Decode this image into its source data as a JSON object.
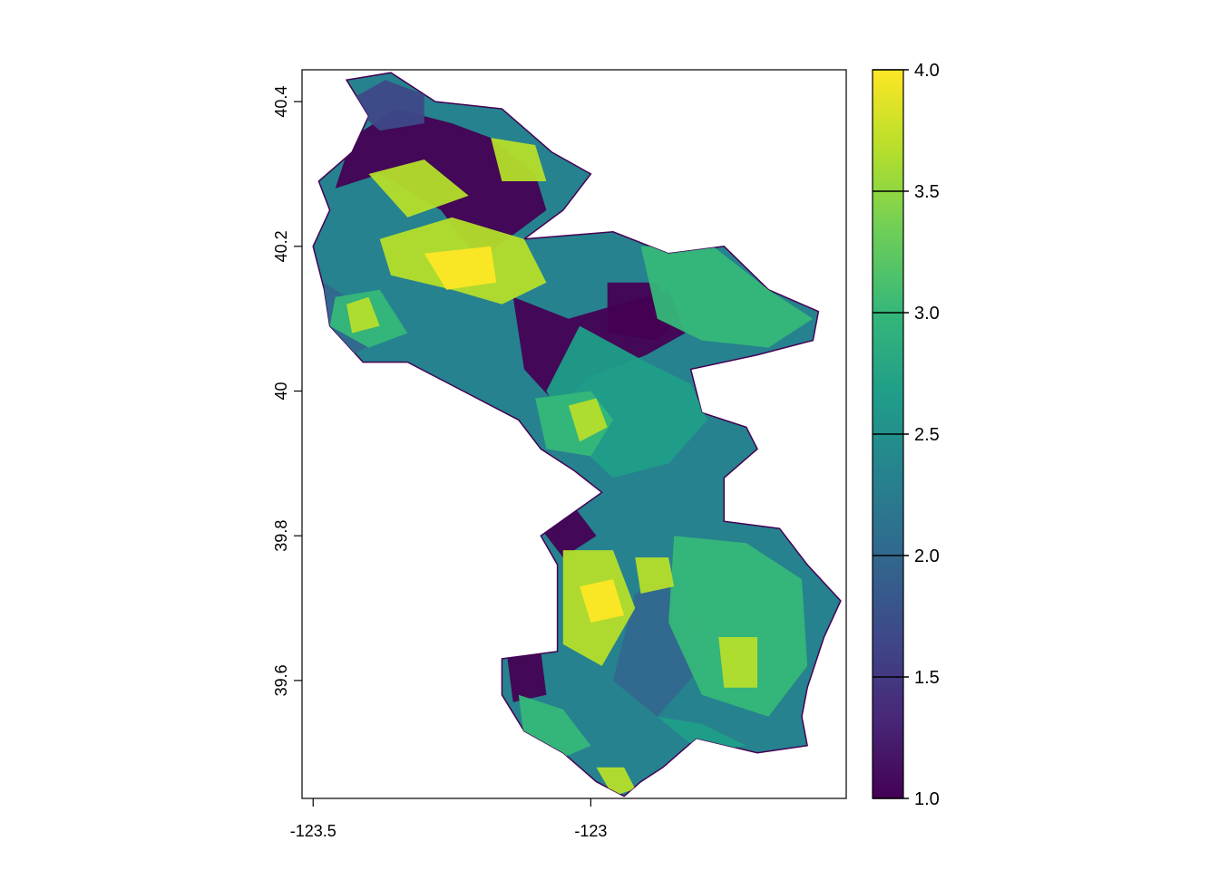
{
  "chart_data": {
    "type": "heatmap",
    "title": "",
    "xlabel": "",
    "ylabel": "",
    "xlim": [
      -123.52,
      -122.54
    ],
    "ylim": [
      39.437,
      40.444
    ],
    "x_ticks": [
      {
        "value": -123.5,
        "label": "-123.5"
      },
      {
        "value": -123.0,
        "label": "-123"
      }
    ],
    "y_ticks": [
      {
        "value": 39.6,
        "label": "39.6"
      },
      {
        "value": 39.8,
        "label": "39.8"
      },
      {
        "value": 40.0,
        "label": "40"
      },
      {
        "value": 40.2,
        "label": "40.2"
      },
      {
        "value": 40.4,
        "label": "40.4"
      }
    ],
    "legend": {
      "placement": "right",
      "min": 1.0,
      "max": 4.0,
      "ticks": [
        {
          "value": 1.0,
          "label": "1.0"
        },
        {
          "value": 1.5,
          "label": "1.5"
        },
        {
          "value": 2.0,
          "label": "2.0"
        },
        {
          "value": 2.5,
          "label": "2.5"
        },
        {
          "value": 3.0,
          "label": "3.0"
        },
        {
          "value": 3.5,
          "label": "3.5"
        },
        {
          "value": 4.0,
          "label": "4.0"
        }
      ],
      "colors": [
        "#440154",
        "#482878",
        "#3e4989",
        "#31688e",
        "#26828e",
        "#1f9e89",
        "#35b779",
        "#6ece58",
        "#b5de2b",
        "#fde725"
      ]
    },
    "region_outline": [
      [
        -123.44,
        40.43
      ],
      [
        -123.36,
        40.44
      ],
      [
        -123.28,
        40.4
      ],
      [
        -123.16,
        40.39
      ],
      [
        -123.07,
        40.33
      ],
      [
        -123.0,
        40.3
      ],
      [
        -123.05,
        40.25
      ],
      [
        -123.12,
        40.21
      ],
      [
        -122.96,
        40.22
      ],
      [
        -122.86,
        40.19
      ],
      [
        -122.76,
        40.2
      ],
      [
        -122.68,
        40.14
      ],
      [
        -122.59,
        40.11
      ],
      [
        -122.6,
        40.07
      ],
      [
        -122.7,
        40.05
      ],
      [
        -122.82,
        40.03
      ],
      [
        -122.8,
        39.97
      ],
      [
        -122.72,
        39.95
      ],
      [
        -122.7,
        39.92
      ],
      [
        -122.76,
        39.88
      ],
      [
        -122.76,
        39.82
      ],
      [
        -122.66,
        39.81
      ],
      [
        -122.61,
        39.76
      ],
      [
        -122.55,
        39.71
      ],
      [
        -122.58,
        39.66
      ],
      [
        -122.61,
        39.59
      ],
      [
        -122.62,
        39.55
      ],
      [
        -122.61,
        39.51
      ],
      [
        -122.7,
        39.5
      ],
      [
        -122.81,
        39.52
      ],
      [
        -122.87,
        39.48
      ],
      [
        -122.91,
        39.46
      ],
      [
        -122.94,
        39.44
      ],
      [
        -122.99,
        39.46
      ],
      [
        -123.05,
        39.5
      ],
      [
        -123.12,
        39.53
      ],
      [
        -123.16,
        39.58
      ],
      [
        -123.16,
        39.63
      ],
      [
        -123.06,
        39.64
      ],
      [
        -123.06,
        39.69
      ],
      [
        -123.06,
        39.76
      ],
      [
        -123.09,
        39.8
      ],
      [
        -122.98,
        39.86
      ],
      [
        -123.03,
        39.89
      ],
      [
        -123.09,
        39.92
      ],
      [
        -123.13,
        39.96
      ],
      [
        -123.23,
        40.0
      ],
      [
        -123.33,
        40.04
      ],
      [
        -123.41,
        40.04
      ],
      [
        -123.47,
        40.09
      ],
      [
        -123.48,
        40.14
      ],
      [
        -123.5,
        40.2
      ],
      [
        -123.47,
        40.25
      ],
      [
        -123.49,
        40.29
      ],
      [
        -123.43,
        40.33
      ],
      [
        -123.4,
        40.38
      ]
    ],
    "zones": [
      {
        "value": 1.0,
        "polygon": [
          [
            -123.15,
            40.21
          ],
          [
            -123.2,
            40.18
          ],
          [
            -123.27,
            40.25
          ],
          [
            -123.38,
            40.3
          ],
          [
            -123.46,
            40.28
          ],
          [
            -123.43,
            40.35
          ],
          [
            -123.35,
            40.39
          ],
          [
            -123.25,
            40.37
          ],
          [
            -123.18,
            40.35
          ],
          [
            -123.1,
            40.3
          ],
          [
            -123.08,
            40.25
          ]
        ]
      },
      {
        "value": 1.5,
        "polygon": [
          [
            -123.44,
            40.4
          ],
          [
            -123.37,
            40.43
          ],
          [
            -123.3,
            40.41
          ],
          [
            -123.3,
            40.37
          ],
          [
            -123.38,
            40.36
          ]
        ]
      },
      {
        "value": 1.0,
        "polygon": [
          [
            -123.14,
            40.13
          ],
          [
            -123.04,
            40.1
          ],
          [
            -122.95,
            40.12
          ],
          [
            -122.86,
            40.14
          ],
          [
            -122.83,
            40.08
          ],
          [
            -122.9,
            40.05
          ],
          [
            -123.0,
            40.02
          ],
          [
            -123.06,
            39.98
          ],
          [
            -123.12,
            40.03
          ]
        ]
      },
      {
        "value": 1.0,
        "polygon": [
          [
            -122.97,
            40.15
          ],
          [
            -122.88,
            40.15
          ],
          [
            -122.84,
            40.1
          ],
          [
            -122.88,
            40.07
          ],
          [
            -122.97,
            40.08
          ]
        ]
      },
      {
        "value": 2.0,
        "polygon": [
          [
            -123.48,
            40.15
          ],
          [
            -123.42,
            40.12
          ],
          [
            -123.38,
            40.07
          ],
          [
            -123.43,
            40.05
          ],
          [
            -123.48,
            40.09
          ]
        ]
      },
      {
        "value": 3.0,
        "polygon": [
          [
            -122.91,
            40.2
          ],
          [
            -122.78,
            40.2
          ],
          [
            -122.68,
            40.14
          ],
          [
            -122.6,
            40.1
          ],
          [
            -122.68,
            40.06
          ],
          [
            -122.8,
            40.07
          ],
          [
            -122.88,
            40.1
          ]
        ]
      },
      {
        "value": 2.5,
        "polygon": [
          [
            -123.02,
            40.09
          ],
          [
            -122.9,
            40.04
          ],
          [
            -122.82,
            40.01
          ],
          [
            -122.79,
            39.96
          ],
          [
            -122.86,
            39.9
          ],
          [
            -122.96,
            39.88
          ],
          [
            -123.03,
            39.93
          ],
          [
            -123.08,
            40.0
          ]
        ]
      },
      {
        "value": 3.5,
        "polygon": [
          [
            -123.38,
            40.21
          ],
          [
            -123.25,
            40.24
          ],
          [
            -123.12,
            40.21
          ],
          [
            -123.08,
            40.15
          ],
          [
            -123.16,
            40.12
          ],
          [
            -123.25,
            40.14
          ],
          [
            -123.36,
            40.16
          ]
        ]
      },
      {
        "value": 4.0,
        "polygon": [
          [
            -123.3,
            40.19
          ],
          [
            -123.18,
            40.2
          ],
          [
            -123.17,
            40.15
          ],
          [
            -123.26,
            40.14
          ]
        ]
      },
      {
        "value": 3.5,
        "polygon": [
          [
            -123.4,
            40.3
          ],
          [
            -123.3,
            40.32
          ],
          [
            -123.22,
            40.27
          ],
          [
            -123.33,
            40.24
          ]
        ]
      },
      {
        "value": 3.5,
        "polygon": [
          [
            -123.18,
            40.35
          ],
          [
            -123.1,
            40.34
          ],
          [
            -123.08,
            40.29
          ],
          [
            -123.16,
            40.29
          ]
        ]
      },
      {
        "value": 3.0,
        "polygon": [
          [
            -123.46,
            40.13
          ],
          [
            -123.38,
            40.14
          ],
          [
            -123.33,
            40.08
          ],
          [
            -123.4,
            40.06
          ],
          [
            -123.47,
            40.09
          ]
        ]
      },
      {
        "value": 3.5,
        "polygon": [
          [
            -123.44,
            40.12
          ],
          [
            -123.4,
            40.13
          ],
          [
            -123.38,
            40.09
          ],
          [
            -123.43,
            40.08
          ]
        ]
      },
      {
        "value": 3.0,
        "polygon": [
          [
            -123.1,
            39.99
          ],
          [
            -123.0,
            40.0
          ],
          [
            -122.96,
            39.96
          ],
          [
            -123.0,
            39.91
          ],
          [
            -123.08,
            39.92
          ]
        ]
      },
      {
        "value": 3.5,
        "polygon": [
          [
            -123.04,
            39.98
          ],
          [
            -122.99,
            39.99
          ],
          [
            -122.97,
            39.95
          ],
          [
            -123.02,
            39.93
          ]
        ]
      },
      {
        "value": 1.0,
        "polygon": [
          [
            -123.1,
            39.82
          ],
          [
            -123.03,
            39.84
          ],
          [
            -122.99,
            39.8
          ],
          [
            -123.05,
            39.77
          ]
        ]
      },
      {
        "value": 1.0,
        "polygon": [
          [
            -123.15,
            39.63
          ],
          [
            -123.09,
            39.64
          ],
          [
            -123.08,
            39.58
          ],
          [
            -123.14,
            39.57
          ]
        ]
      },
      {
        "value": 2.0,
        "polygon": [
          [
            -122.92,
            39.72
          ],
          [
            -122.84,
            39.74
          ],
          [
            -122.8,
            39.62
          ],
          [
            -122.88,
            39.55
          ],
          [
            -122.96,
            39.6
          ]
        ]
      },
      {
        "value": 3.0,
        "polygon": [
          [
            -122.85,
            39.8
          ],
          [
            -122.72,
            39.79
          ],
          [
            -122.62,
            39.74
          ],
          [
            -122.61,
            39.62
          ],
          [
            -122.68,
            39.55
          ],
          [
            -122.8,
            39.58
          ],
          [
            -122.86,
            39.68
          ]
        ]
      },
      {
        "value": 3.5,
        "polygon": [
          [
            -123.05,
            39.78
          ],
          [
            -122.96,
            39.78
          ],
          [
            -122.92,
            39.7
          ],
          [
            -122.98,
            39.62
          ],
          [
            -123.05,
            39.65
          ]
        ]
      },
      {
        "value": 4.0,
        "polygon": [
          [
            -123.02,
            39.73
          ],
          [
            -122.96,
            39.74
          ],
          [
            -122.94,
            39.69
          ],
          [
            -123.0,
            39.68
          ]
        ]
      },
      {
        "value": 3.5,
        "polygon": [
          [
            -122.92,
            39.77
          ],
          [
            -122.86,
            39.77
          ],
          [
            -122.85,
            39.73
          ],
          [
            -122.91,
            39.72
          ]
        ]
      },
      {
        "value": 3.5,
        "polygon": [
          [
            -122.77,
            39.66
          ],
          [
            -122.7,
            39.66
          ],
          [
            -122.7,
            39.59
          ],
          [
            -122.76,
            39.59
          ]
        ]
      },
      {
        "value": 3.0,
        "polygon": [
          [
            -123.13,
            39.58
          ],
          [
            -123.05,
            39.56
          ],
          [
            -123.0,
            39.51
          ],
          [
            -123.06,
            39.49
          ],
          [
            -123.12,
            39.52
          ]
        ]
      },
      {
        "value": 3.5,
        "polygon": [
          [
            -122.99,
            39.48
          ],
          [
            -122.94,
            39.48
          ],
          [
            -122.92,
            39.45
          ],
          [
            -122.96,
            39.44
          ]
        ]
      },
      {
        "value": 2.5,
        "polygon": [
          [
            -122.88,
            39.55
          ],
          [
            -122.8,
            39.54
          ],
          [
            -122.72,
            39.51
          ],
          [
            -122.8,
            39.5
          ]
        ]
      }
    ]
  }
}
